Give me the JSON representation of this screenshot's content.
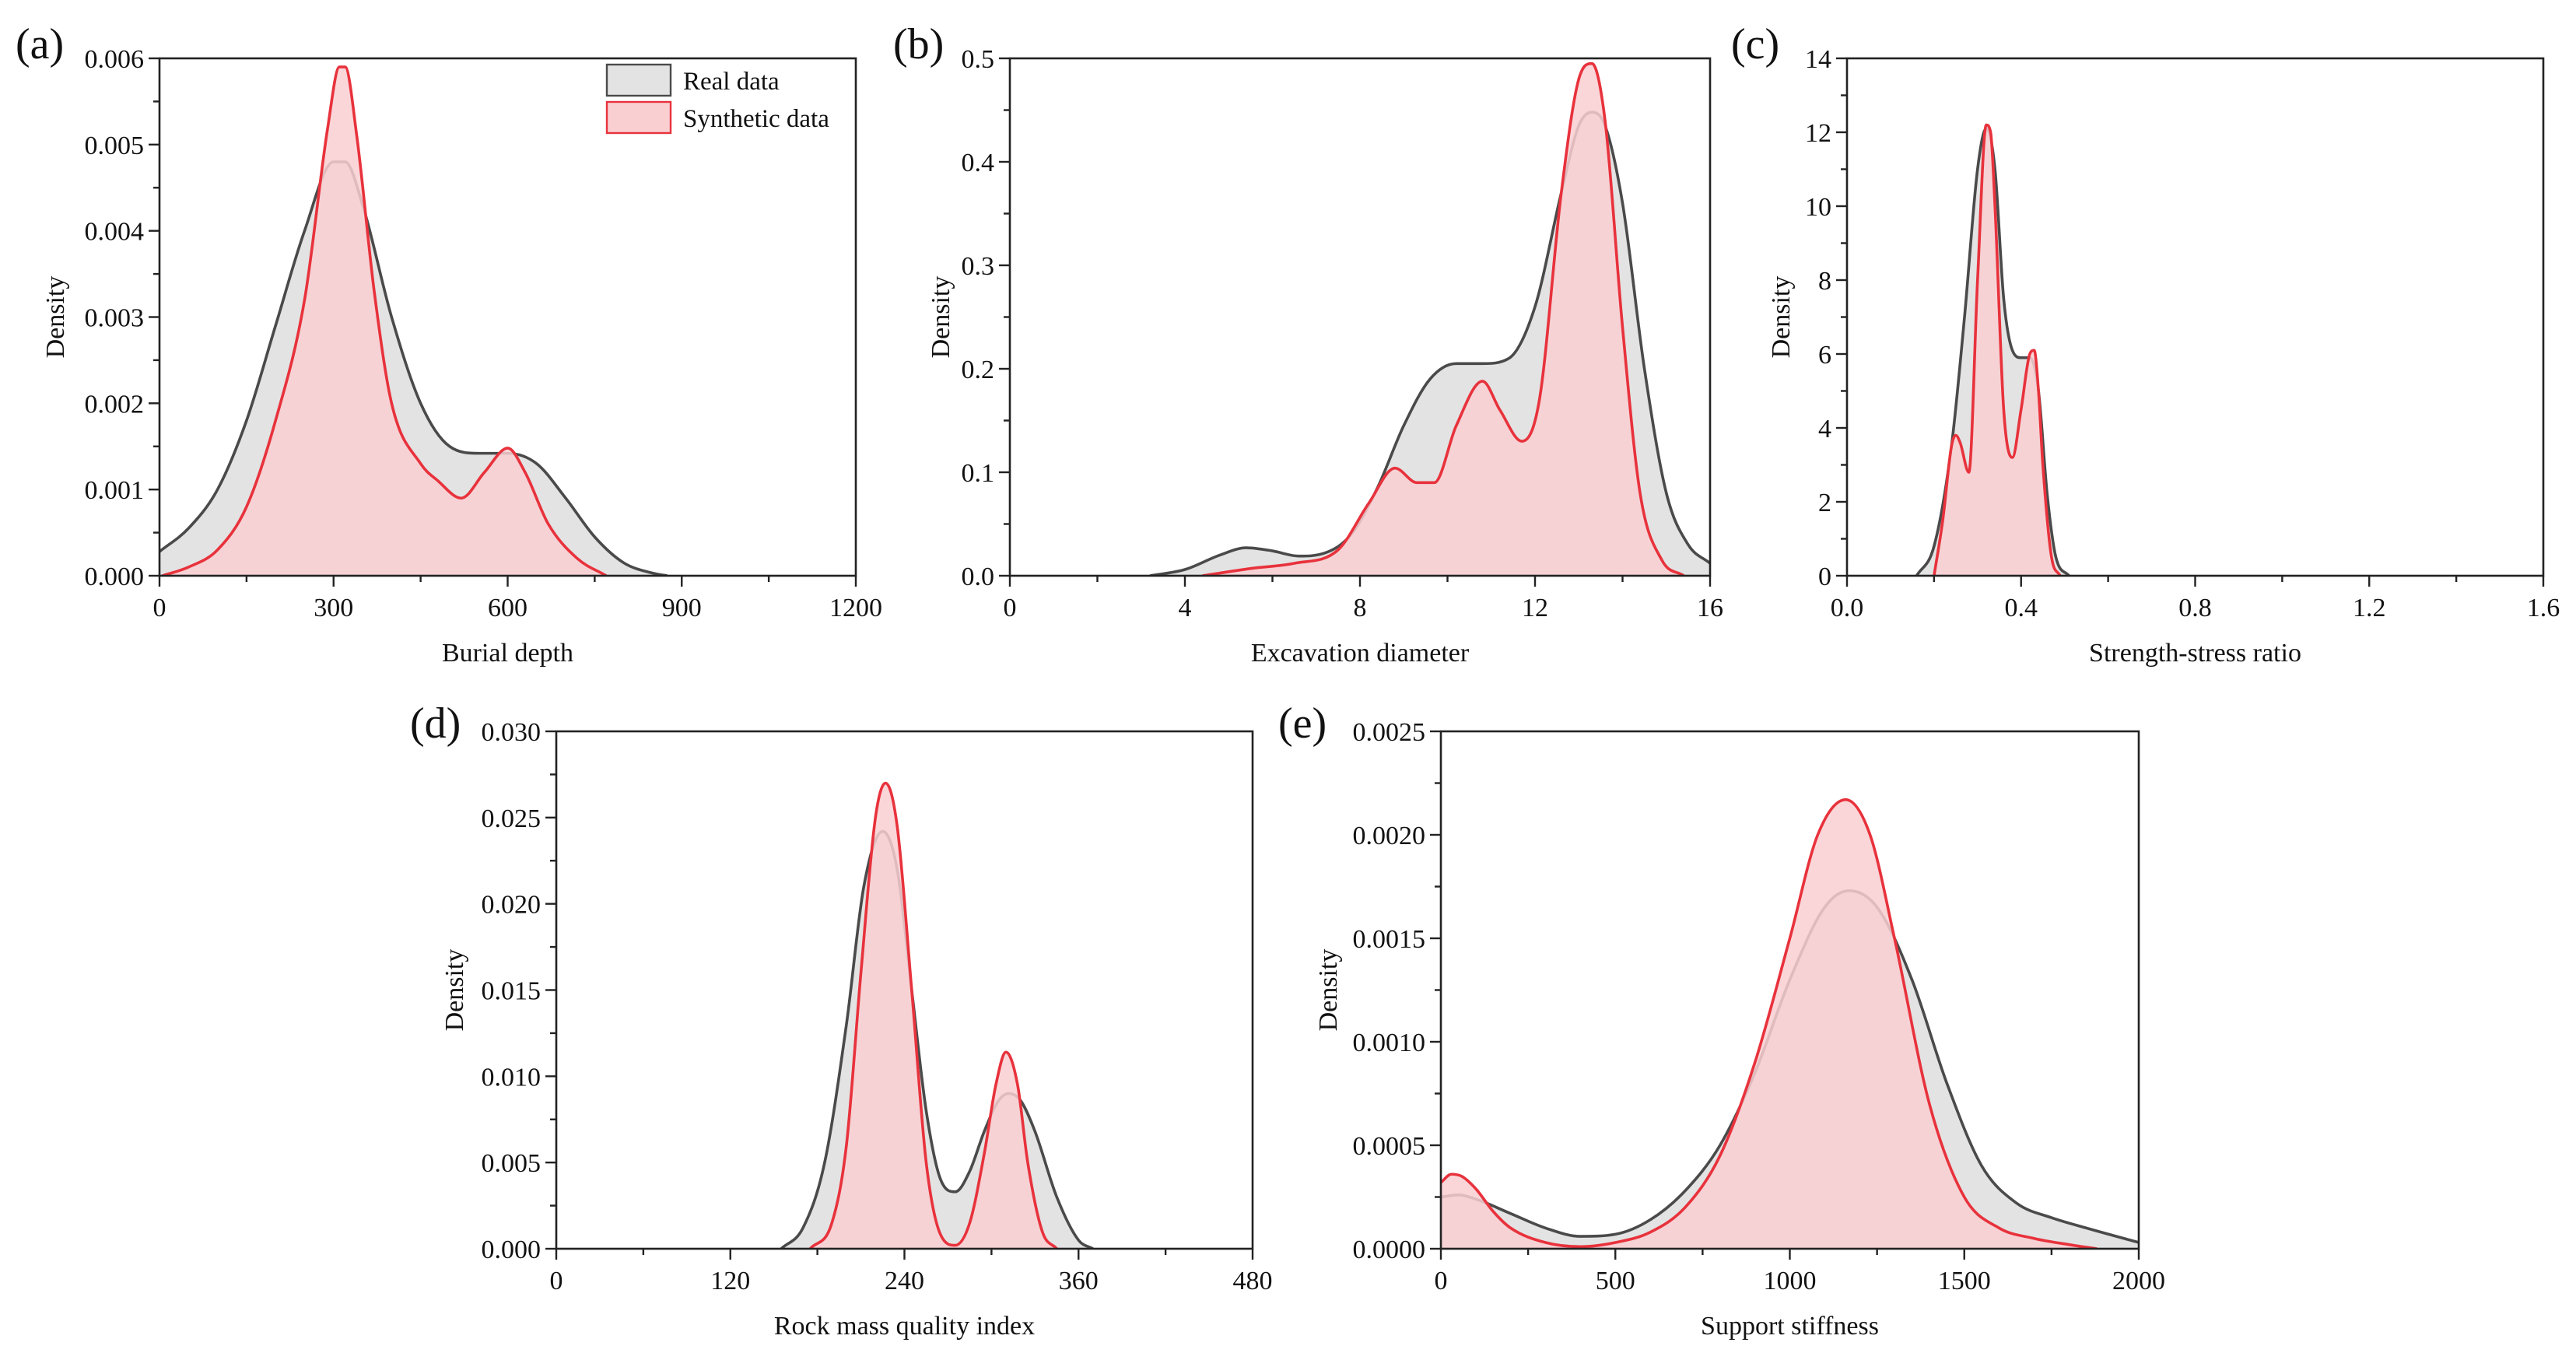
{
  "colors": {
    "real_line": "#4a4a4a",
    "real_fill": "#e3e3e3",
    "synthetic_line": "#e8323c",
    "synthetic_fill": "#f9cfd2"
  },
  "legend": {
    "real_label": "Real data",
    "synthetic_label": "Synthetic data"
  },
  "chart_data": [
    {
      "id": "a",
      "panel_label": "(a)",
      "type": "area",
      "xlabel": "Burial depth",
      "ylabel": "Density",
      "xlim": [
        0,
        1200
      ],
      "ylim": [
        0,
        0.006
      ],
      "xticks": [
        0,
        300,
        600,
        900,
        1200
      ],
      "xtick_labels": [
        "0",
        "300",
        "600",
        "900",
        "1200"
      ],
      "yticks": [
        0,
        0.001,
        0.002,
        0.003,
        0.004,
        0.005,
        0.006
      ],
      "ytick_labels": [
        "0.000",
        "0.001",
        "0.002",
        "0.003",
        "0.004",
        "0.005",
        "0.006"
      ],
      "legend": true,
      "series": [
        {
          "name": "Real data",
          "x": [
            0,
            50,
            100,
            150,
            200,
            250,
            300,
            320,
            350,
            400,
            450,
            500,
            550,
            600,
            650,
            700,
            750,
            800,
            850,
            875
          ],
          "values": [
            0.00028,
            0.00055,
            0.001,
            0.0018,
            0.0029,
            0.004,
            0.0048,
            0.0048,
            0.0043,
            0.003,
            0.002,
            0.0015,
            0.00142,
            0.00142,
            0.0013,
            0.0009,
            0.00045,
            0.00015,
            3e-05,
            0.0
          ]
        },
        {
          "name": "Synthetic data",
          "x": [
            5,
            50,
            100,
            150,
            200,
            250,
            290,
            310,
            320,
            340,
            370,
            400,
            450,
            480,
            520,
            560,
            600,
            630,
            670,
            720,
            770
          ],
          "values": [
            0.0,
            0.0001,
            0.0003,
            0.0008,
            0.0018,
            0.0032,
            0.0052,
            0.0059,
            0.0059,
            0.0051,
            0.0033,
            0.002,
            0.0013,
            0.0011,
            0.0009,
            0.0012,
            0.00148,
            0.0012,
            0.0006,
            0.0002,
            0.0
          ]
        }
      ]
    },
    {
      "id": "b",
      "panel_label": "(b)",
      "type": "area",
      "xlabel": "Excavation diameter",
      "ylabel": "Density",
      "xlim": [
        0,
        16
      ],
      "ylim": [
        0,
        0.5
      ],
      "xticks": [
        0,
        4,
        8,
        12,
        16
      ],
      "xtick_labels": [
        "0",
        "4",
        "8",
        "12",
        "16"
      ],
      "yticks": [
        0,
        0.1,
        0.2,
        0.3,
        0.4,
        0.5
      ],
      "ytick_labels": [
        "0.0",
        "0.1",
        "0.2",
        "0.3",
        "0.4",
        "0.5"
      ],
      "legend": false,
      "series": [
        {
          "name": "Real data",
          "x": [
            3.2,
            4.0,
            4.8,
            5.4,
            6.0,
            6.6,
            7.2,
            7.8,
            8.4,
            9.0,
            9.6,
            10.2,
            10.8,
            11.4,
            12.0,
            12.6,
            13.0,
            13.3,
            13.6,
            14.0,
            14.5,
            15.0,
            15.5,
            16.0
          ],
          "values": [
            0.0,
            0.006,
            0.02,
            0.027,
            0.024,
            0.019,
            0.022,
            0.04,
            0.085,
            0.145,
            0.19,
            0.205,
            0.205,
            0.21,
            0.26,
            0.37,
            0.435,
            0.448,
            0.435,
            0.36,
            0.2,
            0.08,
            0.03,
            0.012
          ]
        },
        {
          "name": "Synthetic data",
          "x": [
            4.4,
            5.5,
            6.5,
            7.5,
            8.2,
            8.8,
            9.3,
            9.7,
            10.2,
            10.8,
            11.2,
            11.7,
            12.1,
            12.6,
            13.0,
            13.3,
            13.6,
            14.0,
            14.4,
            14.9,
            15.4
          ],
          "values": [
            0.0,
            0.007,
            0.012,
            0.025,
            0.07,
            0.104,
            0.09,
            0.09,
            0.145,
            0.188,
            0.16,
            0.13,
            0.17,
            0.37,
            0.48,
            0.495,
            0.44,
            0.24,
            0.08,
            0.015,
            0.0
          ]
        }
      ]
    },
    {
      "id": "c",
      "panel_label": "(c)",
      "type": "area",
      "xlabel": "Strength-stress ratio",
      "ylabel": "Density",
      "xlim": [
        0,
        1.6
      ],
      "ylim": [
        0,
        14
      ],
      "xticks": [
        0,
        0.4,
        0.8,
        1.2,
        1.6
      ],
      "xtick_labels": [
        "0.0",
        "0.4",
        "0.8",
        "1.2",
        "1.6"
      ],
      "yticks": [
        0,
        2,
        4,
        6,
        8,
        10,
        12,
        14
      ],
      "ytick_labels": [
        "0",
        "2",
        "4",
        "6",
        "8",
        "10",
        "12",
        "14"
      ],
      "legend": false,
      "series": [
        {
          "name": "Real data",
          "x": [
            0.16,
            0.2,
            0.24,
            0.27,
            0.3,
            0.32,
            0.34,
            0.36,
            0.38,
            0.4,
            0.42,
            0.44,
            0.46,
            0.48,
            0.51
          ],
          "values": [
            0.0,
            0.8,
            3.5,
            7.0,
            11.0,
            12.1,
            11.0,
            7.5,
            6.1,
            5.9,
            5.9,
            5.0,
            2.2,
            0.5,
            0.0
          ]
        },
        {
          "name": "Synthetic data",
          "x": [
            0.2,
            0.22,
            0.24,
            0.25,
            0.26,
            0.28,
            0.3,
            0.32,
            0.33,
            0.34,
            0.36,
            0.38,
            0.4,
            0.42,
            0.43,
            0.44,
            0.45,
            0.47,
            0.49
          ],
          "values": [
            0.0,
            1.5,
            3.5,
            3.8,
            3.6,
            2.8,
            8.0,
            12.2,
            12.0,
            10.0,
            4.5,
            3.2,
            4.5,
            6.0,
            6.1,
            5.0,
            3.0,
            0.5,
            0.0
          ]
        }
      ]
    },
    {
      "id": "d",
      "panel_label": "(d)",
      "type": "area",
      "xlabel": "Rock mass quality index",
      "ylabel": "Density",
      "xlim": [
        0,
        480
      ],
      "ylim": [
        0,
        0.03
      ],
      "xticks": [
        0,
        120,
        240,
        360,
        480
      ],
      "xtick_labels": [
        "0",
        "120",
        "240",
        "360",
        "480"
      ],
      "yticks": [
        0,
        0.005,
        0.01,
        0.015,
        0.02,
        0.025,
        0.03
      ],
      "ytick_labels": [
        "0.000",
        "0.005",
        "0.010",
        "0.015",
        "0.020",
        "0.025",
        "0.030"
      ],
      "legend": false,
      "series": [
        {
          "name": "Real data",
          "x": [
            155,
            170,
            185,
            200,
            212,
            225,
            235,
            245,
            255,
            265,
            275,
            285,
            295,
            305,
            312,
            320,
            330,
            345,
            360,
            370
          ],
          "values": [
            0.0,
            0.0012,
            0.005,
            0.013,
            0.021,
            0.0242,
            0.022,
            0.015,
            0.008,
            0.004,
            0.0033,
            0.0045,
            0.0068,
            0.0086,
            0.009,
            0.0086,
            0.0068,
            0.003,
            0.0005,
            0.0
          ]
        },
        {
          "name": "Synthetic data",
          "x": [
            175,
            190,
            200,
            210,
            220,
            227,
            235,
            245,
            255,
            265,
            275,
            285,
            295,
            303,
            310,
            318,
            325,
            335,
            345
          ],
          "values": [
            0.0,
            0.0015,
            0.006,
            0.016,
            0.025,
            0.027,
            0.0245,
            0.015,
            0.005,
            0.0008,
            0.0002,
            0.0015,
            0.0055,
            0.0095,
            0.0114,
            0.0095,
            0.005,
            0.001,
            0.0
          ]
        }
      ]
    },
    {
      "id": "e",
      "panel_label": "(e)",
      "type": "area",
      "xlabel": "Support stiffness",
      "ylabel": "Density",
      "xlim": [
        0,
        2000
      ],
      "ylim": [
        0,
        0.0025
      ],
      "xticks": [
        0,
        500,
        1000,
        1500,
        2000
      ],
      "xtick_labels": [
        "0",
        "500",
        "1000",
        "1500",
        "2000"
      ],
      "yticks": [
        0,
        0.0005,
        0.001,
        0.0015,
        0.002,
        0.0025
      ],
      "ytick_labels": [
        "0.0000",
        "0.0005",
        "0.0010",
        "0.0015",
        "0.0020",
        "0.0025"
      ],
      "legend": false,
      "series": [
        {
          "name": "Real data",
          "x": [
            0,
            50,
            100,
            200,
            300,
            400,
            500,
            600,
            700,
            800,
            900,
            1000,
            1100,
            1170,
            1250,
            1350,
            1450,
            1550,
            1650,
            1750,
            1850,
            2000
          ],
          "values": [
            0.00025,
            0.00026,
            0.00024,
            0.00017,
            0.0001,
            6e-05,
            7e-05,
            0.00014,
            0.00028,
            0.0005,
            0.00085,
            0.0013,
            0.00165,
            0.00173,
            0.00165,
            0.0013,
            0.0008,
            0.0004,
            0.00022,
            0.00015,
            0.0001,
            3e-05
          ]
        },
        {
          "name": "Synthetic data",
          "x": [
            0,
            30,
            60,
            100,
            150,
            200,
            300,
            400,
            500,
            600,
            700,
            800,
            900,
            1000,
            1080,
            1160,
            1230,
            1300,
            1400,
            1500,
            1600,
            1700,
            1800,
            1880
          ],
          "values": [
            0.00032,
            0.00036,
            0.00035,
            0.00029,
            0.00018,
            0.0001,
            3e-05,
            1e-05,
            3e-05,
            8e-05,
            0.0002,
            0.00045,
            0.0009,
            0.0015,
            0.002,
            0.00217,
            0.002,
            0.0015,
            0.0007,
            0.00025,
            0.0001,
            5e-05,
            2e-05,
            0.0
          ]
        }
      ]
    }
  ]
}
